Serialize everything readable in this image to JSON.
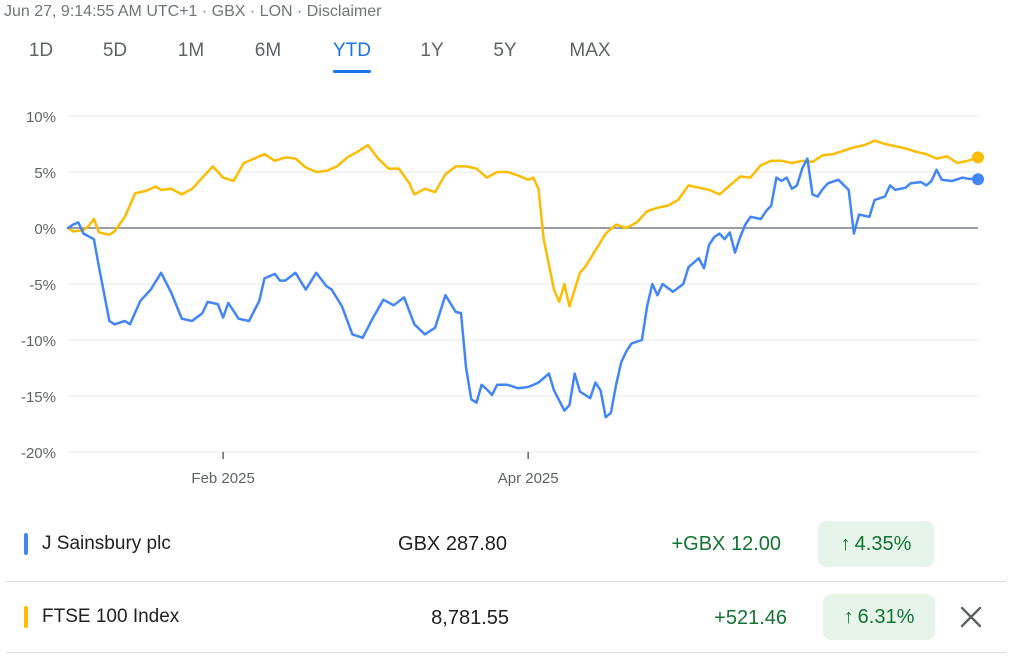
{
  "meta": {
    "text": "Jun 27, 9:14:55 AM UTC+1 · GBX · LON · Disclaimer"
  },
  "tabs": [
    {
      "label": "1D",
      "active": false
    },
    {
      "label": "5D",
      "active": false
    },
    {
      "label": "1M",
      "active": false
    },
    {
      "label": "6M",
      "active": false
    },
    {
      "label": "YTD",
      "active": true
    },
    {
      "label": "1Y",
      "active": false
    },
    {
      "label": "5Y",
      "active": false
    },
    {
      "label": "MAX",
      "active": false
    }
  ],
  "colors": {
    "accent": "#1a73e8",
    "sainsbury": "#4285f4",
    "ftse": "#fbbc04",
    "positive": "#137333",
    "positive_bg": "#e6f4ea"
  },
  "chart_data": {
    "type": "line",
    "ylim": [
      -20,
      10
    ],
    "yticks": [
      10,
      5,
      0,
      -5,
      -10,
      -15,
      -20
    ],
    "ytick_labels": [
      "10%",
      "5%",
      "0%",
      "-5%",
      "-10%",
      "-15%",
      "-20%"
    ],
    "xlim": [
      "2025-01-02",
      "2025-06-27"
    ],
    "xticks": [
      {
        "date": "2025-02-01",
        "label": "Feb 2025"
      },
      {
        "date": "2025-04-01",
        "label": "Apr 2025"
      }
    ],
    "grid": true,
    "series": [
      {
        "name": "J Sainsbury plc",
        "color": "#4285f4",
        "points": [
          [
            "2025-01-02",
            0
          ],
          [
            "2025-01-03",
            0.3
          ],
          [
            "2025-01-04",
            0.5
          ],
          [
            "2025-01-05",
            -0.5
          ],
          [
            "2025-01-07",
            -1
          ],
          [
            "2025-01-08",
            -3.5
          ],
          [
            "2025-01-10",
            -8.3
          ],
          [
            "2025-01-11",
            -8.6
          ],
          [
            "2025-01-13",
            -8.3
          ],
          [
            "2025-01-14",
            -8.6
          ],
          [
            "2025-01-16",
            -6.5
          ],
          [
            "2025-01-18",
            -5.5
          ],
          [
            "2025-01-20",
            -4
          ],
          [
            "2025-01-22",
            -5.8
          ],
          [
            "2025-01-24",
            -8.1
          ],
          [
            "2025-01-26",
            -8.3
          ],
          [
            "2025-01-28",
            -7.6
          ],
          [
            "2025-01-29",
            -6.6
          ],
          [
            "2025-01-31",
            -6.8
          ],
          [
            "2025-02-01",
            -8.0
          ],
          [
            "2025-02-02",
            -6.7
          ],
          [
            "2025-02-04",
            -8.1
          ],
          [
            "2025-02-06",
            -8.3
          ],
          [
            "2025-02-08",
            -6.5
          ],
          [
            "2025-02-09",
            -4.5
          ],
          [
            "2025-02-11",
            -4.1
          ],
          [
            "2025-02-12",
            -4.7
          ],
          [
            "2025-02-13",
            -4.7
          ],
          [
            "2025-02-15",
            -4.0
          ],
          [
            "2025-02-17",
            -5.5
          ],
          [
            "2025-02-19",
            -4.0
          ],
          [
            "2025-02-21",
            -5.2
          ],
          [
            "2025-02-22",
            -5.5
          ],
          [
            "2025-02-24",
            -7.0
          ],
          [
            "2025-02-26",
            -9.5
          ],
          [
            "2025-02-28",
            -9.8
          ],
          [
            "2025-03-02",
            -8.0
          ],
          [
            "2025-03-04",
            -6.4
          ],
          [
            "2025-03-06",
            -6.9
          ],
          [
            "2025-03-08",
            -6.2
          ],
          [
            "2025-03-10",
            -8.6
          ],
          [
            "2025-03-12",
            -9.5
          ],
          [
            "2025-03-14",
            -8.9
          ],
          [
            "2025-03-16",
            -6.0
          ],
          [
            "2025-03-18",
            -7.5
          ],
          [
            "2025-03-19",
            -7.6
          ],
          [
            "2025-03-20",
            -12.5
          ],
          [
            "2025-03-21",
            -15.3
          ],
          [
            "2025-03-22",
            -15.6
          ],
          [
            "2025-03-23",
            -14.0
          ],
          [
            "2025-03-24",
            -14.4
          ],
          [
            "2025-03-25",
            -14.9
          ],
          [
            "2025-03-26",
            -14.0
          ],
          [
            "2025-03-28",
            -14.0
          ],
          [
            "2025-03-30",
            -14.3
          ],
          [
            "2025-04-01",
            -14.2
          ],
          [
            "2025-04-03",
            -13.8
          ],
          [
            "2025-04-05",
            -13.0
          ],
          [
            "2025-04-06",
            -14.5
          ],
          [
            "2025-04-08",
            -16.3
          ],
          [
            "2025-04-09",
            -15.8
          ],
          [
            "2025-04-10",
            -13.0
          ],
          [
            "2025-04-11",
            -14.6
          ],
          [
            "2025-04-13",
            -15.2
          ],
          [
            "2025-04-14",
            -13.8
          ],
          [
            "2025-04-15",
            -14.5
          ],
          [
            "2025-04-16",
            -16.9
          ],
          [
            "2025-04-17",
            -16.5
          ],
          [
            "2025-04-18",
            -14.0
          ],
          [
            "2025-04-19",
            -12.0
          ],
          [
            "2025-04-20",
            -11.0
          ],
          [
            "2025-04-21",
            -10.3
          ],
          [
            "2025-04-23",
            -10.0
          ],
          [
            "2025-04-24",
            -7.0
          ],
          [
            "2025-04-25",
            -5.0
          ],
          [
            "2025-04-26",
            -6.0
          ],
          [
            "2025-04-27",
            -5.0
          ],
          [
            "2025-04-29",
            -5.7
          ],
          [
            "2025-05-01",
            -5.0
          ],
          [
            "2025-05-02",
            -3.5
          ],
          [
            "2025-05-04",
            -2.7
          ],
          [
            "2025-05-05",
            -3.6
          ],
          [
            "2025-05-06",
            -1.5
          ],
          [
            "2025-05-07",
            -0.8
          ],
          [
            "2025-05-08",
            -0.5
          ],
          [
            "2025-05-09",
            -1.0
          ],
          [
            "2025-05-10",
            -0.4
          ],
          [
            "2025-05-11",
            -2.2
          ],
          [
            "2025-05-12",
            -0.8
          ],
          [
            "2025-05-13",
            0.3
          ],
          [
            "2025-05-14",
            1.0
          ],
          [
            "2025-05-16",
            0.8
          ],
          [
            "2025-05-17",
            1.5
          ],
          [
            "2025-05-18",
            2.0
          ],
          [
            "2025-05-19",
            4.5
          ],
          [
            "2025-05-20",
            4.2
          ],
          [
            "2025-05-21",
            4.5
          ],
          [
            "2025-05-22",
            3.5
          ],
          [
            "2025-05-23",
            3.8
          ],
          [
            "2025-05-24",
            5.3
          ],
          [
            "2025-05-25",
            6.2
          ],
          [
            "2025-05-26",
            3.0
          ],
          [
            "2025-05-27",
            2.8
          ],
          [
            "2025-05-28",
            3.5
          ],
          [
            "2025-05-29",
            4.0
          ],
          [
            "2025-05-31",
            4.3
          ],
          [
            "2025-06-02",
            3.4
          ],
          [
            "2025-06-03",
            -0.5
          ],
          [
            "2025-06-04",
            1.2
          ],
          [
            "2025-06-06",
            1.0
          ],
          [
            "2025-06-07",
            2.5
          ],
          [
            "2025-06-09",
            2.8
          ],
          [
            "2025-06-10",
            3.8
          ],
          [
            "2025-06-11",
            3.4
          ],
          [
            "2025-06-13",
            3.6
          ],
          [
            "2025-06-14",
            4.0
          ],
          [
            "2025-06-16",
            4.1
          ],
          [
            "2025-06-17",
            3.8
          ],
          [
            "2025-06-18",
            4.2
          ],
          [
            "2025-06-19",
            5.2
          ],
          [
            "2025-06-20",
            4.3
          ],
          [
            "2025-06-22",
            4.2
          ],
          [
            "2025-06-24",
            4.5
          ],
          [
            "2025-06-25",
            4.4
          ],
          [
            "2025-06-27",
            4.35
          ]
        ]
      },
      {
        "name": "FTSE 100 Index",
        "color": "#fbbc04",
        "points": [
          [
            "2025-01-02",
            0
          ],
          [
            "2025-01-03",
            -0.3
          ],
          [
            "2025-01-05",
            -0.2
          ],
          [
            "2025-01-06",
            0.2
          ],
          [
            "2025-01-07",
            0.8
          ],
          [
            "2025-01-08",
            -0.4
          ],
          [
            "2025-01-10",
            -0.6
          ],
          [
            "2025-01-11",
            -0.3
          ],
          [
            "2025-01-13",
            1.0
          ],
          [
            "2025-01-15",
            3.1
          ],
          [
            "2025-01-17",
            3.3
          ],
          [
            "2025-01-19",
            3.7
          ],
          [
            "2025-01-20",
            3.4
          ],
          [
            "2025-01-22",
            3.5
          ],
          [
            "2025-01-24",
            3.0
          ],
          [
            "2025-01-26",
            3.5
          ],
          [
            "2025-01-28",
            4.5
          ],
          [
            "2025-01-30",
            5.5
          ],
          [
            "2025-02-01",
            4.5
          ],
          [
            "2025-02-03",
            4.2
          ],
          [
            "2025-02-05",
            5.8
          ],
          [
            "2025-02-07",
            6.2
          ],
          [
            "2025-02-09",
            6.6
          ],
          [
            "2025-02-11",
            6.0
          ],
          [
            "2025-02-13",
            6.3
          ],
          [
            "2025-02-15",
            6.2
          ],
          [
            "2025-02-17",
            5.4
          ],
          [
            "2025-02-19",
            5.0
          ],
          [
            "2025-02-21",
            5.1
          ],
          [
            "2025-02-23",
            5.5
          ],
          [
            "2025-02-25",
            6.3
          ],
          [
            "2025-02-27",
            6.8
          ],
          [
            "2025-03-01",
            7.4
          ],
          [
            "2025-03-03",
            6.2
          ],
          [
            "2025-03-05",
            5.3
          ],
          [
            "2025-03-07",
            5.3
          ],
          [
            "2025-03-09",
            4.0
          ],
          [
            "2025-03-10",
            3.0
          ],
          [
            "2025-03-12",
            3.5
          ],
          [
            "2025-03-14",
            3.2
          ],
          [
            "2025-03-16",
            4.8
          ],
          [
            "2025-03-18",
            5.5
          ],
          [
            "2025-03-20",
            5.5
          ],
          [
            "2025-03-22",
            5.3
          ],
          [
            "2025-03-24",
            4.5
          ],
          [
            "2025-03-26",
            5.0
          ],
          [
            "2025-03-28",
            5.0
          ],
          [
            "2025-03-30",
            4.7
          ],
          [
            "2025-04-01",
            4.3
          ],
          [
            "2025-04-02",
            4.5
          ],
          [
            "2025-04-03",
            3.5
          ],
          [
            "2025-04-04",
            -1.0
          ],
          [
            "2025-04-06",
            -5.5
          ],
          [
            "2025-04-07",
            -6.6
          ],
          [
            "2025-04-08",
            -5.0
          ],
          [
            "2025-04-09",
            -7.0
          ],
          [
            "2025-04-10",
            -5.5
          ],
          [
            "2025-04-11",
            -4.0
          ],
          [
            "2025-04-12",
            -3.5
          ],
          [
            "2025-04-14",
            -2.0
          ],
          [
            "2025-04-16",
            -0.5
          ],
          [
            "2025-04-18",
            0.3
          ],
          [
            "2025-04-20",
            0.0
          ],
          [
            "2025-04-22",
            0.5
          ],
          [
            "2025-04-24",
            1.5
          ],
          [
            "2025-04-26",
            1.8
          ],
          [
            "2025-04-28",
            2.0
          ],
          [
            "2025-04-30",
            2.5
          ],
          [
            "2025-05-02",
            3.8
          ],
          [
            "2025-05-04",
            3.6
          ],
          [
            "2025-05-06",
            3.4
          ],
          [
            "2025-05-08",
            3.0
          ],
          [
            "2025-05-10",
            3.8
          ],
          [
            "2025-05-12",
            4.6
          ],
          [
            "2025-05-14",
            4.5
          ],
          [
            "2025-05-16",
            5.6
          ],
          [
            "2025-05-18",
            6.0
          ],
          [
            "2025-05-20",
            6.0
          ],
          [
            "2025-05-22",
            5.8
          ],
          [
            "2025-05-24",
            6.0
          ],
          [
            "2025-05-26",
            5.9
          ],
          [
            "2025-05-28",
            6.5
          ],
          [
            "2025-05-30",
            6.6
          ],
          [
            "2025-06-01",
            6.9
          ],
          [
            "2025-06-03",
            7.2
          ],
          [
            "2025-06-05",
            7.4
          ],
          [
            "2025-06-07",
            7.8
          ],
          [
            "2025-06-09",
            7.5
          ],
          [
            "2025-06-11",
            7.3
          ],
          [
            "2025-06-13",
            7.1
          ],
          [
            "2025-06-15",
            6.8
          ],
          [
            "2025-06-17",
            6.6
          ],
          [
            "2025-06-19",
            6.2
          ],
          [
            "2025-06-21",
            6.4
          ],
          [
            "2025-06-23",
            5.8
          ],
          [
            "2025-06-25",
            6.0
          ],
          [
            "2025-06-27",
            6.31
          ]
        ]
      }
    ]
  },
  "comparison": [
    {
      "name": "J Sainsbury plc",
      "price": "GBX 287.80",
      "change": "+GBX 12.00",
      "percent": "4.35%",
      "arrow": "↑"
    },
    {
      "name": "FTSE 100 Index",
      "price": "8,781.55",
      "change": "+521.46",
      "percent": "6.31%",
      "arrow": "↑",
      "remove_icon": "close-icon"
    }
  ]
}
